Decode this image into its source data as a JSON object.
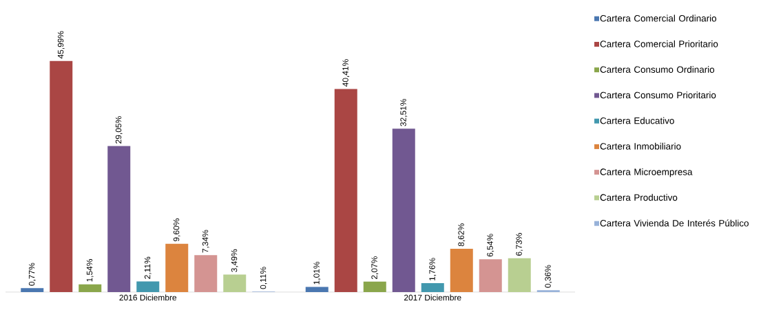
{
  "chart_data": {
    "type": "bar",
    "categories": [
      "2016 Diciembre",
      "2017 Diciembre"
    ],
    "tick_labels": "x",
    "legend": "right",
    "series": [
      {
        "name": "Cartera  Comercial Ordinario",
        "color": "#4a77b0",
        "values": [
          0.77,
          1.01
        ],
        "value_labels": [
          "0,77%",
          "1,01%"
        ]
      },
      {
        "name": "Cartera  Comercial Prioritario",
        "color": "#aa4644",
        "values": [
          45.99,
          40.41
        ],
        "value_labels": [
          "45,99%",
          "40,41%"
        ]
      },
      {
        "name": "Cartera  Consumo Ordinario",
        "color": "#8aa64b",
        "values": [
          1.54,
          2.07
        ],
        "value_labels": [
          "1,54%",
          "2,07%"
        ]
      },
      {
        "name": "Cartera  Consumo Prioritario",
        "color": "#715891",
        "values": [
          29.05,
          32.51
        ],
        "value_labels": [
          "29,05%",
          "32,51%"
        ]
      },
      {
        "name": "Cartera  Educativo",
        "color": "#4298ae",
        "values": [
          2.11,
          1.76
        ],
        "value_labels": [
          "2,11%",
          "1,76%"
        ]
      },
      {
        "name": "Cartera  Inmobiliario",
        "color": "#dc843e",
        "values": [
          9.6,
          8.62
        ],
        "value_labels": [
          "9,60%",
          "8,62%"
        ]
      },
      {
        "name": "Cartera  Microempresa",
        "color": "#d49492",
        "values": [
          7.34,
          6.54
        ],
        "value_labels": [
          "7,34%",
          "6,54%"
        ]
      },
      {
        "name": "Cartera  Productivo",
        "color": "#b8cf91",
        "values": [
          3.49,
          6.73
        ],
        "value_labels": [
          "3,49%",
          "6,73%"
        ]
      },
      {
        "name": "Cartera  Vivienda De Interés Público",
        "color": "#98b2d9",
        "values": [
          0.11,
          0.36
        ],
        "value_labels": [
          "0,11%",
          "0,36%"
        ]
      }
    ]
  }
}
